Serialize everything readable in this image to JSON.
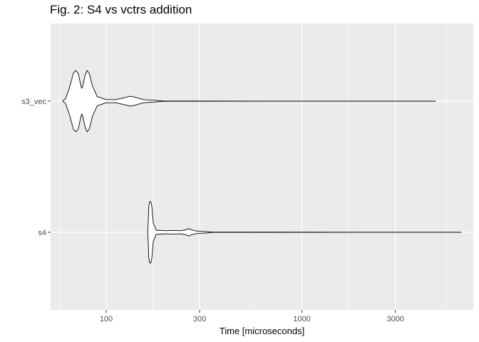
{
  "chart_data": {
    "type": "violin",
    "title": "Fig. 2: S4 vs vctrs addition",
    "xlabel": "Time [microseconds]",
    "ylabel": "",
    "x_scale": "log10",
    "xlim": [
      52,
      7500
    ],
    "x_ticks": [
      100,
      300,
      1000,
      3000
    ],
    "x_tick_labels": [
      "100",
      "300",
      "1000",
      "3000"
    ],
    "categories": [
      "s3_vec",
      "s4"
    ],
    "colors": {
      "panel_bg": "#ebebeb",
      "grid_major": "#ffffff",
      "violin_fill": "#ffffff",
      "violin_stroke": "#000000"
    },
    "series": [
      {
        "name": "s3_vec",
        "range": [
          60,
          4800
        ],
        "density": [
          [
            60,
            0.0
          ],
          [
            62,
            0.08
          ],
          [
            65,
            0.45
          ],
          [
            68,
            0.92
          ],
          [
            70,
            1.0
          ],
          [
            72,
            0.9
          ],
          [
            74,
            0.55
          ],
          [
            75,
            0.42
          ],
          [
            76,
            0.5
          ],
          [
            78,
            0.85
          ],
          [
            80,
            1.0
          ],
          [
            82,
            0.9
          ],
          [
            85,
            0.5
          ],
          [
            90,
            0.15
          ],
          [
            100,
            0.05
          ],
          [
            112,
            0.05
          ],
          [
            125,
            0.12
          ],
          [
            133,
            0.16
          ],
          [
            142,
            0.12
          ],
          [
            155,
            0.05
          ],
          [
            175,
            0.03
          ],
          [
            190,
            0.01
          ],
          [
            200,
            0.004
          ],
          [
            4800,
            0.0
          ]
        ]
      },
      {
        "name": "s4",
        "range": [
          163,
          6500
        ],
        "density": [
          [
            163,
            0.0
          ],
          [
            164,
            0.35
          ],
          [
            165,
            0.85
          ],
          [
            167,
            1.0
          ],
          [
            169,
            1.0
          ],
          [
            171,
            0.85
          ],
          [
            174,
            0.3
          ],
          [
            180,
            0.07
          ],
          [
            200,
            0.05
          ],
          [
            220,
            0.06
          ],
          [
            240,
            0.05
          ],
          [
            255,
            0.08
          ],
          [
            264,
            0.12
          ],
          [
            272,
            0.08
          ],
          [
            290,
            0.04
          ],
          [
            320,
            0.025
          ],
          [
            350,
            0.005
          ],
          [
            6500,
            0.0
          ]
        ]
      }
    ]
  }
}
